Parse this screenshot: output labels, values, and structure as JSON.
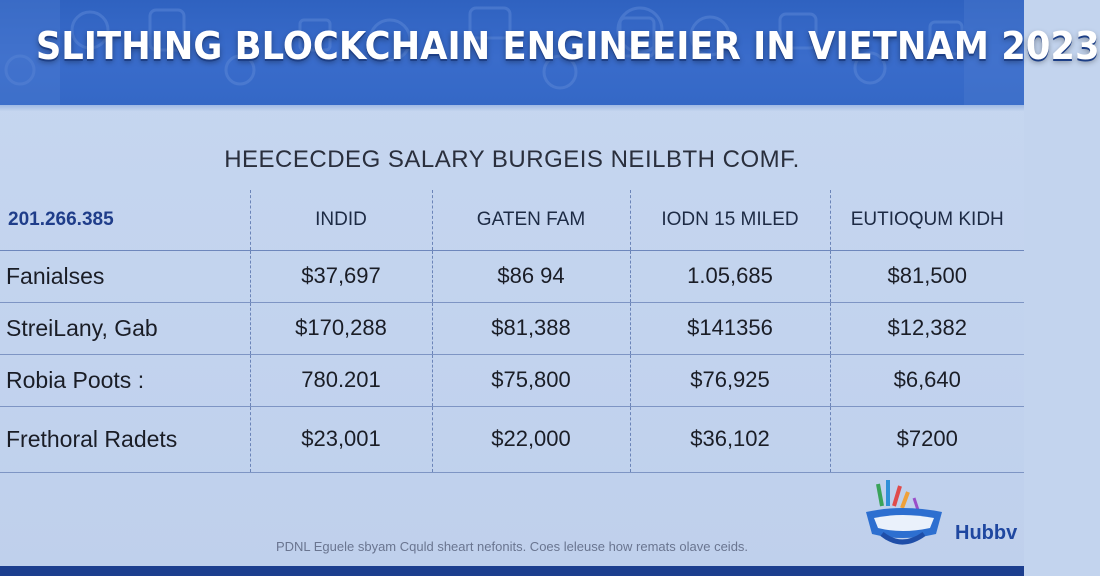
{
  "banner": {
    "title": "SLITHING BLOCKCHAIN ENGINEEIER IN VIETNAM 2023"
  },
  "chart_data": {
    "type": "table",
    "title": "HEECECDEG SALARY BURGEIS NEILBTH COMF.",
    "corner_label": "201.266.385",
    "columns": [
      "INDID",
      "GATEN FAM",
      "IODN 15 MILED",
      "EUTIOQUM KIDH"
    ],
    "rows": [
      {
        "label": "Fanialses",
        "values": [
          "$37,697",
          "$86 94",
          "1.05,685",
          "$81,500"
        ]
      },
      {
        "label": "StreiLany, Gab",
        "values": [
          "$170,288",
          "$81,388",
          "$141356",
          "$12,382"
        ]
      },
      {
        "label": "Robia Poots :",
        "values": [
          "780.201",
          "$75,800",
          "$76,925",
          "$6,640"
        ]
      },
      {
        "label": "Frethoral Radets",
        "values": [
          "$23,001",
          "$22,000",
          "$36,102",
          "$7200"
        ]
      }
    ]
  },
  "footer": {
    "note": "PDNL Eguele sbyam Cquld sheart nefonits. Coes leleuse how remats olave ceids.",
    "logo_text": "Hubbv"
  },
  "colors": {
    "banner": "#3468c6",
    "background": "#c3d4ee",
    "grid": "#6b84b8",
    "bottom_bar": "#1c3e8e"
  }
}
